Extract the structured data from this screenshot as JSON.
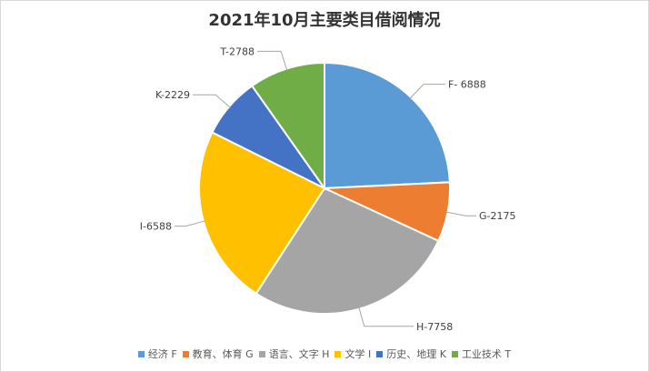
{
  "chart_data": {
    "type": "pie",
    "title": "2021年10月主要类目借阅情况",
    "start_angle_deg": 0,
    "direction": "clockwise",
    "legend_position": "bottom",
    "slices": [
      {
        "name": "经济 F",
        "code": "F",
        "value": 6888,
        "label": "F- 6888",
        "color": "#5B9BD5"
      },
      {
        "name": "教育、体育 G",
        "code": "G",
        "value": 2175,
        "label": "G-2175",
        "color": "#ED7D31"
      },
      {
        "name": "语言、文字 H",
        "code": "H",
        "value": 7758,
        "label": "H-7758",
        "color": "#A5A5A5"
      },
      {
        "name": "文学 I",
        "code": "I",
        "value": 6588,
        "label": "I-6588",
        "color": "#FFC000"
      },
      {
        "name": "历史、地理 K",
        "code": "K",
        "value": 2229,
        "label": "K-2229",
        "color": "#4472C4"
      },
      {
        "name": "工业技术 T",
        "code": "T",
        "value": 2788,
        "label": "T-2788",
        "color": "#70AD47"
      }
    ]
  }
}
